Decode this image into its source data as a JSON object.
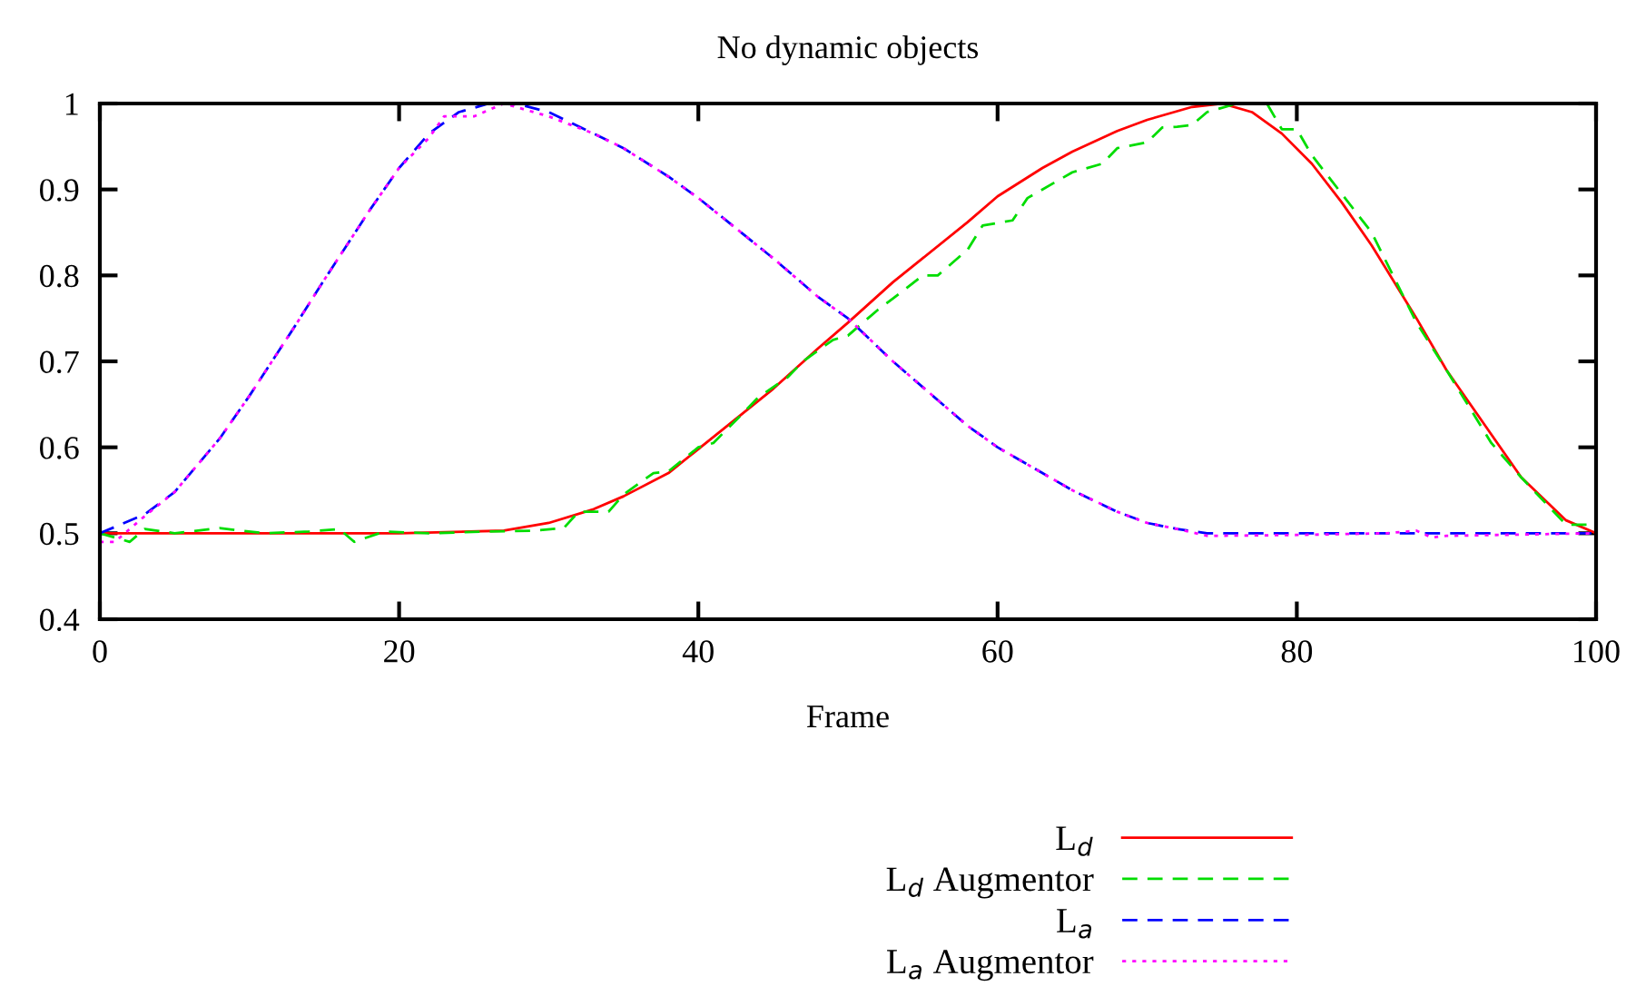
{
  "chart_data": {
    "type": "line",
    "title": "No dynamic objects",
    "xlabel": "Frame",
    "xlim": [
      0,
      100
    ],
    "xticks": [
      0,
      20,
      40,
      60,
      80,
      100
    ],
    "ylim": [
      0.4,
      1
    ],
    "yticks": [
      0.4,
      0.5,
      0.6,
      0.7,
      0.8,
      0.9,
      1
    ],
    "grid": false,
    "legend": "bottom right",
    "series": [
      {
        "name": "L$_{d}$",
        "color": "#ff0000",
        "line_style": "solid",
        "x": [
          0,
          10,
          20,
          27,
          30,
          33,
          35,
          38,
          40,
          43,
          45,
          48,
          50,
          53,
          55,
          58,
          60,
          63,
          65,
          68,
          70,
          73,
          75,
          77,
          79,
          81,
          83,
          85,
          88,
          90,
          93,
          95,
          98,
          100
        ],
        "values": [
          0.5,
          0.5,
          0.5,
          0.503,
          0.512,
          0.528,
          0.543,
          0.57,
          0.598,
          0.64,
          0.668,
          0.715,
          0.745,
          0.792,
          0.82,
          0.862,
          0.892,
          0.925,
          0.944,
          0.968,
          0.981,
          0.996,
          1.0,
          0.99,
          0.965,
          0.93,
          0.885,
          0.835,
          0.75,
          0.69,
          0.615,
          0.565,
          0.515,
          0.5
        ]
      },
      {
        "name": "L$_{d}$ Augmentor",
        "color": "#00dd00",
        "line_style": "dashed",
        "x": [
          0,
          2,
          3,
          5,
          8,
          11,
          14,
          16,
          17,
          19,
          22,
          26,
          29,
          31,
          32,
          34,
          35,
          37,
          38,
          40,
          41,
          43,
          44,
          46,
          47,
          49,
          50,
          52,
          53,
          55,
          56,
          58,
          59,
          61,
          62,
          64,
          65,
          67,
          68,
          70,
          71,
          72,
          73,
          74,
          76,
          77,
          78,
          79,
          80,
          81,
          83,
          85,
          88,
          90,
          93,
          95,
          98,
          100
        ],
        "values": [
          0.5,
          0.49,
          0.505,
          0.5,
          0.506,
          0.5,
          0.502,
          0.505,
          0.49,
          0.502,
          0.5,
          0.502,
          0.503,
          0.506,
          0.525,
          0.525,
          0.545,
          0.57,
          0.572,
          0.6,
          0.605,
          0.64,
          0.658,
          0.682,
          0.7,
          0.725,
          0.73,
          0.76,
          0.773,
          0.8,
          0.8,
          0.83,
          0.858,
          0.864,
          0.89,
          0.91,
          0.92,
          0.93,
          0.948,
          0.955,
          0.972,
          0.973,
          0.975,
          0.99,
          1.0,
          1.0,
          1.0,
          0.97,
          0.97,
          0.94,
          0.895,
          0.85,
          0.745,
          0.69,
          0.605,
          0.565,
          0.51,
          0.51
        ]
      },
      {
        "name": "L$_{a}$",
        "color": "#0000ff",
        "line_style": "dashed",
        "x": [
          0,
          3,
          5,
          8,
          10,
          13,
          15,
          18,
          20,
          22,
          24,
          26,
          28,
          30,
          33,
          35,
          38,
          40,
          43,
          45,
          48,
          50,
          53,
          55,
          58,
          60,
          63,
          65,
          68,
          70,
          72,
          74,
          80,
          87,
          90,
          100
        ],
        "values": [
          0.5,
          0.522,
          0.548,
          0.61,
          0.66,
          0.74,
          0.795,
          0.875,
          0.925,
          0.965,
          0.99,
          1.0,
          0.999,
          0.99,
          0.965,
          0.948,
          0.915,
          0.89,
          0.848,
          0.82,
          0.775,
          0.75,
          0.7,
          0.67,
          0.625,
          0.6,
          0.57,
          0.55,
          0.525,
          0.512,
          0.505,
          0.5,
          0.5,
          0.5,
          0.5,
          0.5
        ]
      },
      {
        "name": "L$_{a}$ Augmentor",
        "color": "#ff00ff",
        "line_style": "dotted",
        "x": [
          0,
          1,
          3,
          5,
          8,
          10,
          13,
          15,
          18,
          20,
          22,
          23,
          25,
          27,
          29,
          30,
          33,
          35,
          38,
          40,
          43,
          45,
          48,
          50,
          53,
          55,
          58,
          60,
          63,
          65,
          68,
          70,
          72,
          74,
          80,
          86,
          88,
          89,
          90,
          100
        ],
        "values": [
          0.49,
          0.49,
          0.52,
          0.548,
          0.61,
          0.66,
          0.74,
          0.795,
          0.875,
          0.925,
          0.96,
          0.985,
          0.985,
          1.0,
          0.99,
          0.985,
          0.965,
          0.948,
          0.915,
          0.89,
          0.848,
          0.82,
          0.775,
          0.75,
          0.7,
          0.67,
          0.625,
          0.6,
          0.57,
          0.55,
          0.525,
          0.512,
          0.505,
          0.497,
          0.498,
          0.5,
          0.503,
          0.495,
          0.497,
          0.5
        ]
      }
    ]
  }
}
